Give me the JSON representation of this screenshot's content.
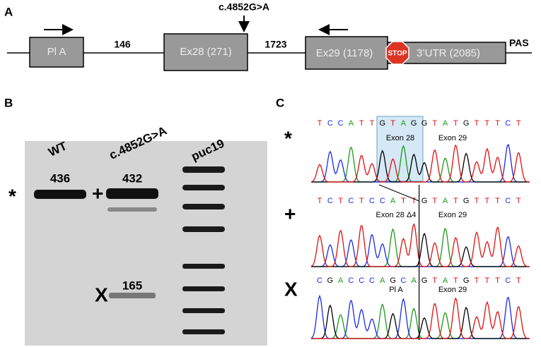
{
  "panel_a": {
    "label": "A",
    "promoter": "Pl A",
    "intron_1": "146",
    "exon_28": "Ex28 (271)",
    "mutation": "c.4852G>A",
    "intron_2": "1723",
    "exon_29": "Ex29 (1178)",
    "stop": "STOP",
    "utr": "3’UTR (2085)",
    "pas": "PAS"
  },
  "panel_b": {
    "label": "B",
    "lanes": [
      "WT",
      "c.4852G>A",
      "puc19"
    ],
    "band_sizes": [
      436,
      432,
      165
    ],
    "markers": [
      "*",
      "+",
      "X"
    ]
  },
  "panel_c": {
    "label": "C",
    "rows": [
      {
        "marker": "*",
        "bases": [
          "T",
          "C",
          "C",
          "A",
          "T",
          "T",
          "G",
          "T",
          "A",
          "G",
          "G",
          "T",
          "A",
          "T",
          "G",
          "T",
          "T",
          "T",
          "C",
          "T"
        ],
        "left_label": "Exon 28",
        "right_label": "Exon 29"
      },
      {
        "marker": "+",
        "bases": [
          "T",
          "C",
          "T",
          "C",
          "T",
          "C",
          "C",
          "A",
          "T",
          "T",
          "G",
          "T",
          "A",
          "T",
          "G",
          "T",
          "T",
          "T",
          "C",
          "T"
        ],
        "left_label": "Exon 28 Δ4",
        "right_label": "Exon 29"
      },
      {
        "marker": "X",
        "bases": [
          "C",
          "G",
          "A",
          "C",
          "C",
          "C",
          "A",
          "G",
          "C",
          "A",
          "G",
          "T",
          "A",
          "T",
          "G",
          "T",
          "T",
          "T",
          "C",
          "T"
        ],
        "left_label": "Pl A",
        "right_label": "Exon 29"
      }
    ]
  }
}
